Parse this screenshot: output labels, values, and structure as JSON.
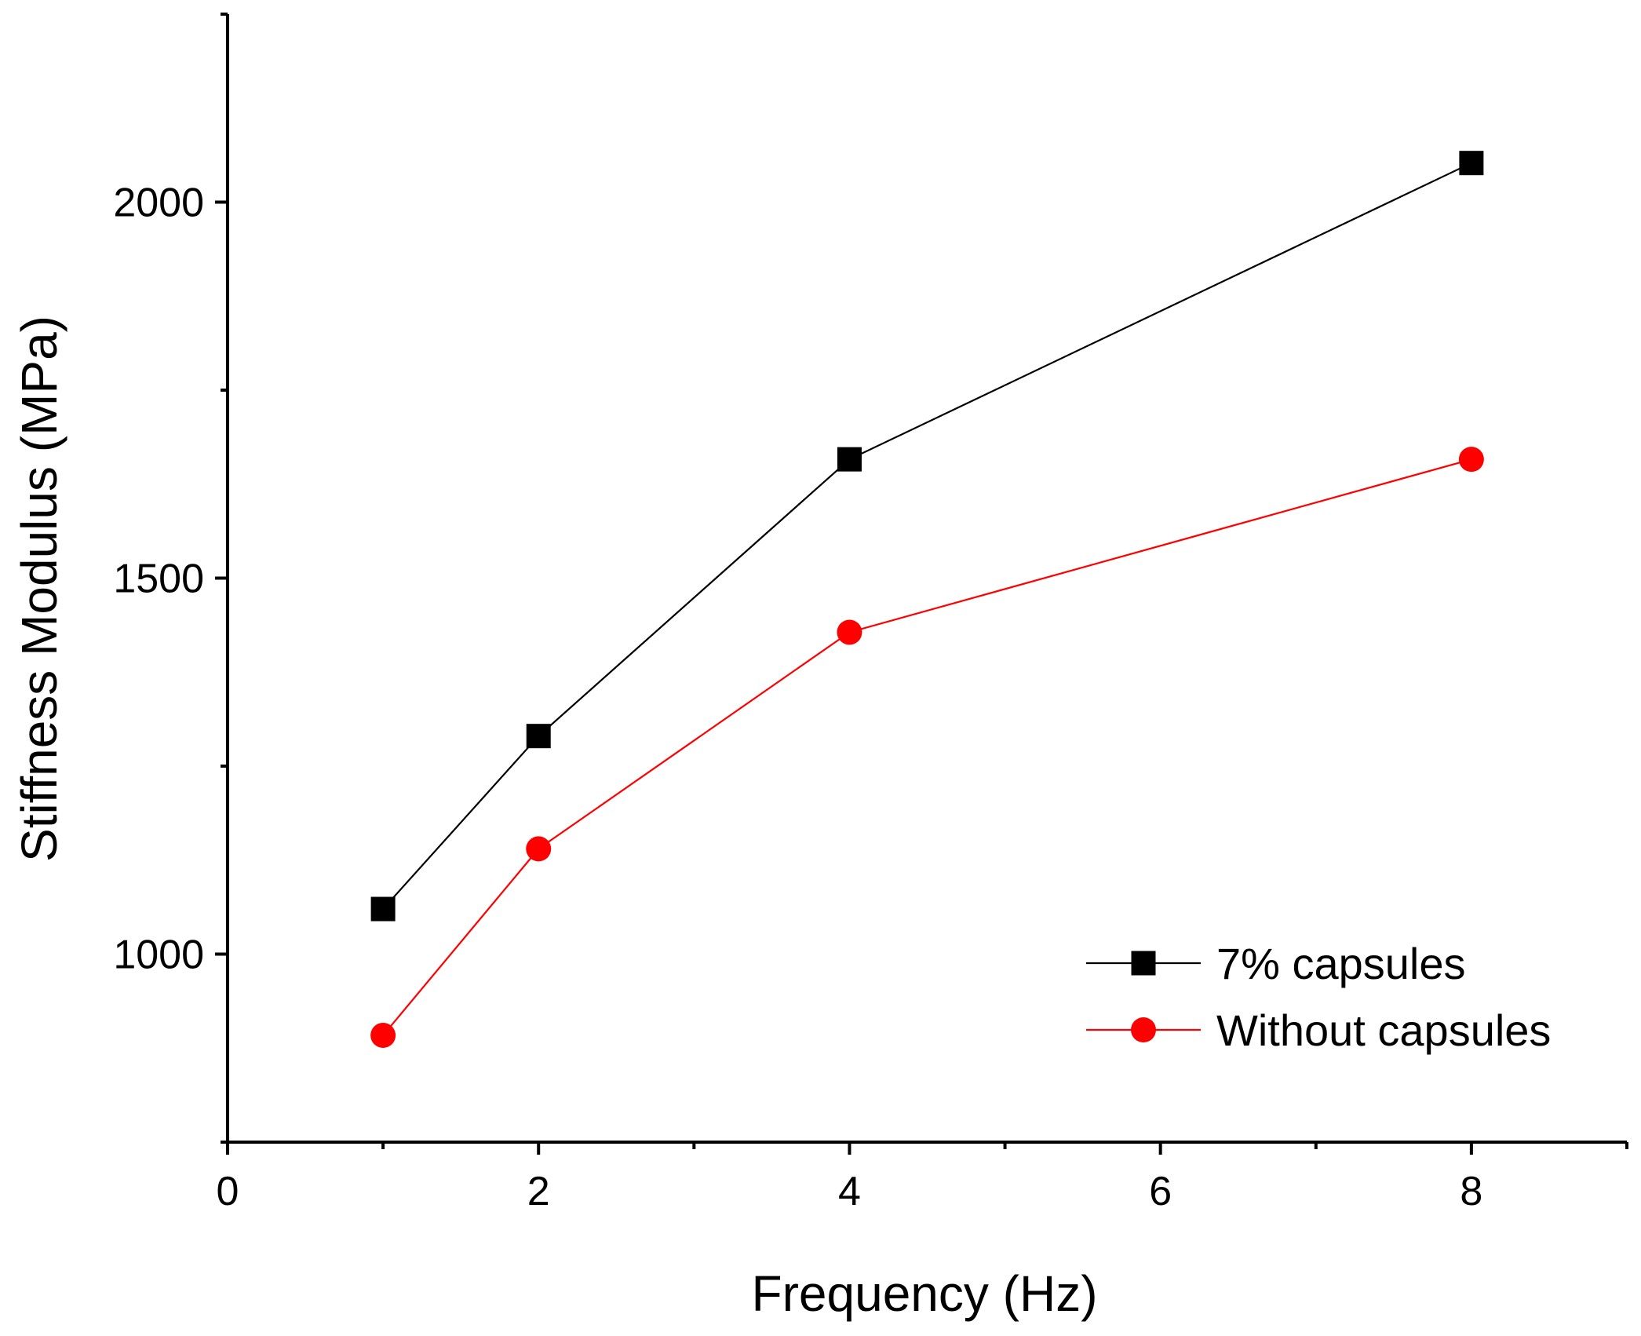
{
  "chart_data": {
    "type": "line",
    "title": "",
    "xlabel": "Frequency (Hz)",
    "ylabel": "Stiffness Modulus (MPa)",
    "xlim": [
      0,
      9
    ],
    "ylim": [
      750,
      2250
    ],
    "x_ticks": [
      0,
      2,
      4,
      6,
      8
    ],
    "x_minor_ticks": [
      1,
      3,
      5,
      7,
      9
    ],
    "y_ticks": [
      1000,
      1500,
      2000
    ],
    "y_minor_ticks": [
      750,
      1250,
      1750,
      2250
    ],
    "grid": false,
    "legend_position": "bottom-right",
    "series": [
      {
        "name": "7% capsules",
        "color": "#000000",
        "marker": "square",
        "x": [
          1,
          2,
          4,
          8
        ],
        "y": [
          1060,
          1290,
          1658,
          2052
        ]
      },
      {
        "name": "Without capsules",
        "color": "#ff0000",
        "marker": "circle",
        "x": [
          1,
          2,
          4,
          8
        ],
        "y": [
          892,
          1140,
          1428,
          1658
        ]
      }
    ]
  }
}
